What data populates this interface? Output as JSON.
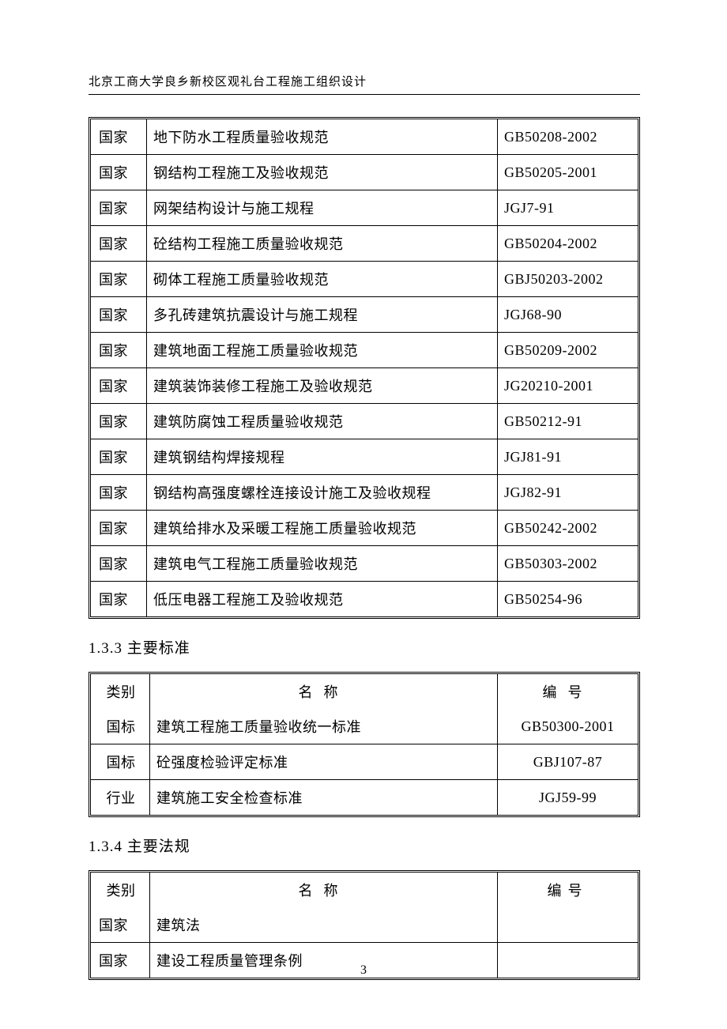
{
  "header": {
    "title": "北京工商大学良乡新校区观礼台工程施工组织设计"
  },
  "sections": {
    "s133": "1.3.3 主要标准",
    "s134": "1.3.4 主要法规"
  },
  "table1": {
    "rows": [
      {
        "category": "国家",
        "name": "地下防水工程质量验收规范",
        "code": "GB50208-2002"
      },
      {
        "category": "国家",
        "name": "钢结构工程施工及验收规范",
        "code": "GB50205-2001"
      },
      {
        "category": "国家",
        "name": "网架结构设计与施工规程",
        "code": "JGJ7-91"
      },
      {
        "category": "国家",
        "name": "砼结构工程施工质量验收规范",
        "code": "GB50204-2002"
      },
      {
        "category": "国家",
        "name": "砌体工程施工质量验收规范",
        "code": "GBJ50203-2002"
      },
      {
        "category": "国家",
        "name": "多孔砖建筑抗震设计与施工规程",
        "code": "JGJ68-90"
      },
      {
        "category": "国家",
        "name": "建筑地面工程施工质量验收规范",
        "code": "GB50209-2002"
      },
      {
        "category": "国家",
        "name": "建筑装饰装修工程施工及验收规范",
        "code": "JG20210-2001"
      },
      {
        "category": "国家",
        "name": "建筑防腐蚀工程质量验收规范",
        "code": "GB50212-91"
      },
      {
        "category": "国家",
        "name": "建筑钢结构焊接规程",
        "code": "JGJ81-91"
      },
      {
        "category": "国家",
        "name": "钢结构高强度螺栓连接设计施工及验收规程",
        "code": "JGJ82-91"
      },
      {
        "category": "国家",
        "name": "建筑给排水及采暖工程施工质量验收规范",
        "code": "GB50242-2002"
      },
      {
        "category": "国家",
        "name": "建筑电气工程施工质量验收规范",
        "code": "GB50303-2002"
      },
      {
        "category": "国家",
        "name": "低压电器工程施工及验收规范",
        "code": "GB50254-96"
      }
    ]
  },
  "table2": {
    "headers": {
      "category": "类别",
      "name": "名称",
      "code": "编号"
    },
    "rows": [
      {
        "category": "国标",
        "name": "建筑工程施工质量验收统一标准",
        "code": "GB50300-2001"
      },
      {
        "category": "国标",
        "name": "砼强度检验评定标准",
        "code": "GBJ107-87"
      },
      {
        "category": "行业",
        "name": "建筑施工安全检查标准",
        "code": "JGJ59-99"
      }
    ]
  },
  "table3": {
    "headers": {
      "category": "类别",
      "name": "名称",
      "code": "编号"
    },
    "rows": [
      {
        "category": "国家",
        "name": "建筑法",
        "code": ""
      },
      {
        "category": "国家",
        "name": "建设工程质量管理条例",
        "code": ""
      }
    ]
  },
  "page_number": "3",
  "style": {
    "background_color": "#ffffff",
    "text_color": "#000000",
    "border_color": "#000000",
    "body_fontsize": 18,
    "header_fontsize": 15,
    "heading_fontsize": 19
  }
}
